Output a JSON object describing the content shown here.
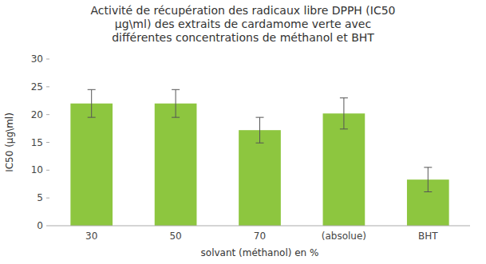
{
  "chart_data": {
    "type": "bar",
    "title": "Activité de récupération des radicaux libre DPPH (IC50\nµg\\ml) des extraits de cardamome verte avec\ndifférentes concentrations de méthanol et BHT",
    "xlabel": "solvant (méthanol) en %",
    "ylabel": "IC50 (µg\\ml)",
    "categories": [
      "30",
      "50",
      "70",
      "(absolue)",
      "BHT"
    ],
    "values": [
      22.0,
      22.0,
      17.2,
      20.2,
      8.3
    ],
    "errors": [
      2.5,
      2.5,
      2.3,
      2.8,
      2.2
    ],
    "color": "#8dc63f",
    "ylim": [
      0,
      30
    ],
    "yticks": [
      0,
      5,
      10,
      15,
      20,
      25,
      30
    ],
    "grid": false
  }
}
